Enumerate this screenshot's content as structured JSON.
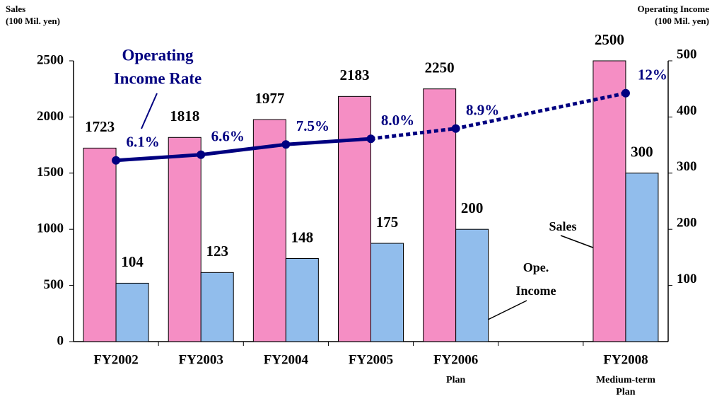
{
  "chart_data": {
    "type": "bar",
    "y_title": [
      "Sales",
      "(100 Mil. yen)"
    ],
    "y2_title": [
      "Operating Income",
      "(100 Mil. yen)"
    ],
    "categories": [
      "FY2002",
      "FY2003",
      "FY2004",
      "FY2005",
      "FY2006",
      null,
      "FY2008"
    ],
    "category_notes": [
      null,
      null,
      null,
      null,
      [
        "Plan"
      ],
      null,
      [
        "Medium-term",
        "Plan"
      ]
    ],
    "series": [
      {
        "name": "Sales",
        "color": "#f58ec4",
        "values": [
          1723,
          1818,
          1977,
          2183,
          2250,
          null,
          2500
        ]
      },
      {
        "name": "Ope. Income",
        "color": "#91bdec",
        "axis": "y2",
        "values": [
          104,
          123,
          148,
          175,
          200,
          null,
          300
        ]
      },
      {
        "name": "Operating Income Rate",
        "type": "line",
        "color": "#000080",
        "values": [
          6.1,
          6.6,
          7.5,
          8.0,
          8.9,
          null,
          12
        ],
        "value_labels": [
          "6.1%",
          "6.6%",
          "7.5%",
          "8.0%",
          "8.9%",
          null,
          "12%"
        ],
        "dotted_after_index": 3
      }
    ],
    "annotations": {
      "rate": [
        "Operating",
        "Income Rate"
      ],
      "sales": [
        "Sales"
      ],
      "income": [
        "Ope.",
        "Income"
      ]
    },
    "ylim": [
      0,
      2500
    ],
    "yticks": [
      0,
      500,
      1000,
      1500,
      2000,
      2500
    ],
    "y2lim": [
      0,
      500
    ],
    "y2ticks": [
      100,
      200,
      300,
      400,
      500
    ],
    "grid": false
  }
}
